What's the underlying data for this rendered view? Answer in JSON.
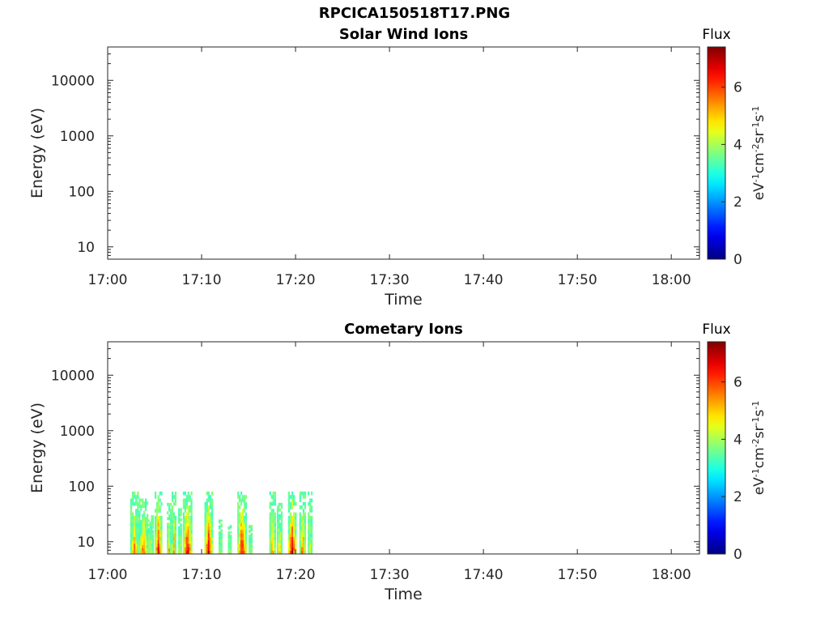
{
  "figure": {
    "title": "RPCICA150518T17.PNG"
  },
  "chart_data": [
    {
      "type": "heatmap",
      "title": "Solar Wind Ions",
      "xlabel": "Time",
      "ylabel": "Energy (eV)",
      "x_ticks": [
        "17:00",
        "17:10",
        "17:20",
        "17:30",
        "17:40",
        "17:50",
        "18:00"
      ],
      "x_range_minutes": [
        0,
        63
      ],
      "y_scale": "log",
      "y_ticks": [
        10,
        100,
        1000,
        10000
      ],
      "y_tick_labels": [
        "10",
        "100",
        "1000",
        "10000"
      ],
      "y_range": [
        6,
        40000
      ],
      "colorbar": {
        "title": "Flux",
        "label": "eV-1cm-2sr-1s-1",
        "range": [
          0,
          7.4
        ],
        "ticks": [
          0,
          2,
          4,
          6
        ],
        "colormap": "jet"
      },
      "cells": []
    },
    {
      "type": "heatmap",
      "title": "Cometary Ions",
      "xlabel": "Time",
      "ylabel": "Energy (eV)",
      "x_ticks": [
        "17:00",
        "17:10",
        "17:20",
        "17:30",
        "17:40",
        "17:50",
        "18:00"
      ],
      "x_range_minutes": [
        0,
        63
      ],
      "y_scale": "log",
      "y_ticks": [
        10,
        100,
        1000,
        10000
      ],
      "y_tick_labels": [
        "10",
        "100",
        "1000",
        "10000"
      ],
      "y_range": [
        6,
        40000
      ],
      "colorbar": {
        "title": "Flux",
        "label": "eV-1cm-2sr-1s-1",
        "range": [
          0,
          7.4
        ],
        "ticks": [
          0,
          2,
          4,
          6
        ],
        "colormap": "jet"
      },
      "data_time_span_minutes": [
        2.4,
        21.8
      ],
      "data_energy_span_eV": [
        6,
        80
      ],
      "bursts": [
        {
          "t_start": 2.4,
          "t_end": 3.3,
          "peak_flux": 5.6,
          "top_eV": 80
        },
        {
          "t_start": 3.3,
          "t_end": 4.3,
          "peak_flux": 6.0,
          "top_eV": 60
        },
        {
          "t_start": 4.3,
          "t_end": 4.9,
          "peak_flux": 5.0,
          "top_eV": 30
        },
        {
          "t_start": 5.0,
          "t_end": 5.8,
          "peak_flux": 6.6,
          "top_eV": 80
        },
        {
          "t_start": 6.3,
          "t_end": 6.8,
          "peak_flux": 5.2,
          "top_eV": 50
        },
        {
          "t_start": 6.8,
          "t_end": 7.3,
          "peak_flux": 5.6,
          "top_eV": 80
        },
        {
          "t_start": 7.5,
          "t_end": 7.9,
          "peak_flux": 5.4,
          "top_eV": 40
        },
        {
          "t_start": 8.0,
          "t_end": 9.0,
          "peak_flux": 6.9,
          "top_eV": 80
        },
        {
          "t_start": 10.3,
          "t_end": 11.2,
          "peak_flux": 6.8,
          "top_eV": 80
        },
        {
          "t_start": 11.8,
          "t_end": 12.2,
          "peak_flux": 4.8,
          "top_eV": 25
        },
        {
          "t_start": 12.8,
          "t_end": 13.2,
          "peak_flux": 4.6,
          "top_eV": 20
        },
        {
          "t_start": 13.8,
          "t_end": 14.8,
          "peak_flux": 7.0,
          "top_eV": 80
        },
        {
          "t_start": 15.0,
          "t_end": 15.4,
          "peak_flux": 5.2,
          "top_eV": 20
        },
        {
          "t_start": 17.2,
          "t_end": 17.9,
          "peak_flux": 5.8,
          "top_eV": 80
        },
        {
          "t_start": 18.0,
          "t_end": 18.6,
          "peak_flux": 5.4,
          "top_eV": 50
        },
        {
          "t_start": 19.2,
          "t_end": 20.1,
          "peak_flux": 7.0,
          "top_eV": 80
        },
        {
          "t_start": 20.4,
          "t_end": 21.1,
          "peak_flux": 6.2,
          "top_eV": 80
        },
        {
          "t_start": 21.3,
          "t_end": 21.8,
          "peak_flux": 4.4,
          "top_eV": 80
        }
      ]
    }
  ]
}
